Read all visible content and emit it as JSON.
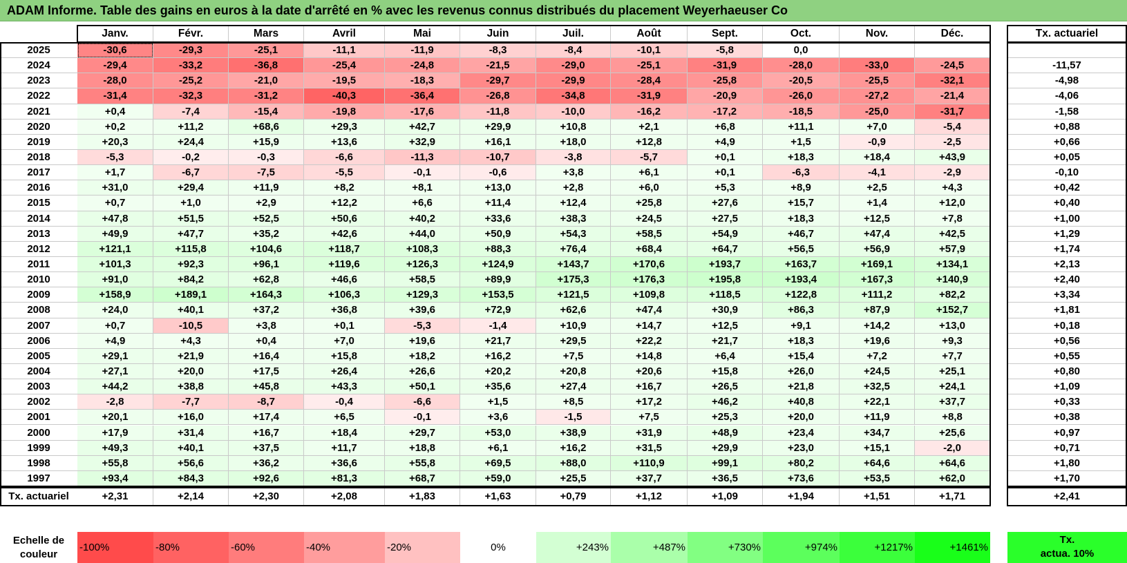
{
  "title": "ADAM Informe. Table des gains en euros à la date d'arrêté en % avec les revenus connus distribués du placement Weyerhaeuser Co",
  "months": [
    "Janv.",
    "Févr.",
    "Mars",
    "Avril",
    "Mai",
    "Juin",
    "Juil.",
    "Août",
    "Sept.",
    "Oct.",
    "Nov.",
    "Déc."
  ],
  "rate_header": "Tx. actuariel",
  "rows": [
    {
      "year": "2025",
      "values": [
        "-30,6",
        "-29,3",
        "-25,1",
        "-11,1",
        "-11,9",
        "-8,3",
        "-8,4",
        "-10,1",
        "-5,8",
        "0,0",
        "",
        ""
      ],
      "rate": ""
    },
    {
      "year": "2024",
      "values": [
        "-29,4",
        "-33,2",
        "-36,8",
        "-25,4",
        "-24,8",
        "-21,5",
        "-29,0",
        "-25,1",
        "-31,9",
        "-28,0",
        "-33,0",
        "-24,5"
      ],
      "rate": "-11,57"
    },
    {
      "year": "2023",
      "values": [
        "-28,0",
        "-25,2",
        "-21,0",
        "-19,5",
        "-18,3",
        "-29,7",
        "-29,9",
        "-28,4",
        "-25,8",
        "-20,5",
        "-25,5",
        "-32,1"
      ],
      "rate": "-4,98"
    },
    {
      "year": "2022",
      "values": [
        "-31,4",
        "-32,3",
        "-31,2",
        "-40,3",
        "-36,4",
        "-26,8",
        "-34,8",
        "-31,9",
        "-20,9",
        "-26,0",
        "-27,2",
        "-21,4"
      ],
      "rate": "-4,06"
    },
    {
      "year": "2021",
      "values": [
        "+0,4",
        "-7,4",
        "-15,4",
        "-19,8",
        "-17,6",
        "-11,8",
        "-10,0",
        "-16,2",
        "-17,2",
        "-18,5",
        "-25,0",
        "-31,7"
      ],
      "rate": "-1,58"
    },
    {
      "year": "2020",
      "values": [
        "+0,2",
        "+11,2",
        "+68,6",
        "+29,3",
        "+42,7",
        "+29,9",
        "+10,8",
        "+2,1",
        "+6,8",
        "+11,1",
        "+7,0",
        "-5,4"
      ],
      "rate": "+0,88"
    },
    {
      "year": "2019",
      "values": [
        "+20,3",
        "+24,4",
        "+15,9",
        "+13,6",
        "+32,9",
        "+16,1",
        "+18,0",
        "+12,8",
        "+4,9",
        "+1,5",
        "-0,9",
        "-2,5"
      ],
      "rate": "+0,66"
    },
    {
      "year": "2018",
      "values": [
        "-5,3",
        "-0,2",
        "-0,3",
        "-6,6",
        "-11,3",
        "-10,7",
        "-3,8",
        "-5,7",
        "+0,1",
        "+18,3",
        "+18,4",
        "+43,9"
      ],
      "rate": "+0,05"
    },
    {
      "year": "2017",
      "values": [
        "+1,7",
        "-6,7",
        "-7,5",
        "-5,5",
        "-0,1",
        "-0,6",
        "+3,8",
        "+6,1",
        "+0,1",
        "-6,3",
        "-4,1",
        "-2,9"
      ],
      "rate": "-0,10"
    },
    {
      "year": "2016",
      "values": [
        "+31,0",
        "+29,4",
        "+11,9",
        "+8,2",
        "+8,1",
        "+13,0",
        "+2,8",
        "+6,0",
        "+5,3",
        "+8,9",
        "+2,5",
        "+4,3"
      ],
      "rate": "+0,42"
    },
    {
      "year": "2015",
      "values": [
        "+0,7",
        "+1,0",
        "+2,9",
        "+12,2",
        "+6,6",
        "+11,4",
        "+12,4",
        "+25,8",
        "+27,6",
        "+15,7",
        "+1,4",
        "+12,0"
      ],
      "rate": "+0,40"
    },
    {
      "year": "2014",
      "values": [
        "+47,8",
        "+51,5",
        "+52,5",
        "+50,6",
        "+40,2",
        "+33,6",
        "+38,3",
        "+24,5",
        "+27,5",
        "+18,3",
        "+12,5",
        "+7,8"
      ],
      "rate": "+1,00"
    },
    {
      "year": "2013",
      "values": [
        "+49,9",
        "+47,7",
        "+35,2",
        "+42,6",
        "+44,0",
        "+50,9",
        "+54,3",
        "+58,5",
        "+54,9",
        "+46,7",
        "+47,4",
        "+42,5"
      ],
      "rate": "+1,29"
    },
    {
      "year": "2012",
      "values": [
        "+121,1",
        "+115,8",
        "+104,6",
        "+118,7",
        "+108,3",
        "+88,3",
        "+76,4",
        "+68,4",
        "+64,7",
        "+56,5",
        "+56,9",
        "+57,9"
      ],
      "rate": "+1,74"
    },
    {
      "year": "2011",
      "values": [
        "+101,3",
        "+92,3",
        "+96,1",
        "+119,6",
        "+126,3",
        "+124,9",
        "+143,7",
        "+170,6",
        "+193,7",
        "+163,7",
        "+169,1",
        "+134,1"
      ],
      "rate": "+2,13"
    },
    {
      "year": "2010",
      "values": [
        "+91,0",
        "+84,2",
        "+62,8",
        "+46,6",
        "+58,5",
        "+89,9",
        "+175,3",
        "+176,3",
        "+195,8",
        "+193,4",
        "+167,3",
        "+140,9"
      ],
      "rate": "+2,40"
    },
    {
      "year": "2009",
      "values": [
        "+158,9",
        "+189,1",
        "+164,3",
        "+106,3",
        "+129,3",
        "+153,5",
        "+121,5",
        "+109,8",
        "+118,5",
        "+122,8",
        "+111,2",
        "+82,2"
      ],
      "rate": "+3,34"
    },
    {
      "year": "2008",
      "values": [
        "+24,0",
        "+40,1",
        "+37,2",
        "+36,8",
        "+39,6",
        "+72,9",
        "+62,6",
        "+47,4",
        "+30,9",
        "+86,3",
        "+87,9",
        "+152,7"
      ],
      "rate": "+1,81"
    },
    {
      "year": "2007",
      "values": [
        "+0,7",
        "-10,5",
        "+3,8",
        "+0,1",
        "-5,3",
        "-1,4",
        "+10,9",
        "+14,7",
        "+12,5",
        "+9,1",
        "+14,2",
        "+13,0"
      ],
      "rate": "+0,18"
    },
    {
      "year": "2006",
      "values": [
        "+4,9",
        "+4,3",
        "+0,4",
        "+7,0",
        "+19,6",
        "+21,7",
        "+29,5",
        "+22,2",
        "+21,7",
        "+18,3",
        "+19,6",
        "+9,3"
      ],
      "rate": "+0,56"
    },
    {
      "year": "2005",
      "values": [
        "+29,1",
        "+21,9",
        "+16,4",
        "+15,8",
        "+18,2",
        "+16,2",
        "+7,5",
        "+14,8",
        "+6,4",
        "+15,4",
        "+7,2",
        "+7,7"
      ],
      "rate": "+0,55"
    },
    {
      "year": "2004",
      "values": [
        "+27,1",
        "+20,0",
        "+17,5",
        "+26,4",
        "+26,6",
        "+20,2",
        "+20,8",
        "+20,6",
        "+15,8",
        "+26,0",
        "+24,5",
        "+25,1"
      ],
      "rate": "+0,80"
    },
    {
      "year": "2003",
      "values": [
        "+44,2",
        "+38,8",
        "+45,8",
        "+43,3",
        "+50,1",
        "+35,6",
        "+27,4",
        "+16,7",
        "+26,5",
        "+21,8",
        "+32,5",
        "+24,1"
      ],
      "rate": "+1,09"
    },
    {
      "year": "2002",
      "values": [
        "-2,8",
        "-7,7",
        "-8,7",
        "-0,4",
        "-6,6",
        "+1,5",
        "+8,5",
        "+17,2",
        "+46,2",
        "+40,8",
        "+22,1",
        "+37,7"
      ],
      "rate": "+0,33"
    },
    {
      "year": "2001",
      "values": [
        "+20,1",
        "+16,0",
        "+17,4",
        "+6,5",
        "-0,1",
        "+3,6",
        "-1,5",
        "+7,5",
        "+25,3",
        "+20,0",
        "+11,9",
        "+8,8"
      ],
      "rate": "+0,38"
    },
    {
      "year": "2000",
      "values": [
        "+17,9",
        "+31,4",
        "+16,7",
        "+18,4",
        "+29,7",
        "+53,0",
        "+38,9",
        "+31,9",
        "+48,9",
        "+23,4",
        "+34,7",
        "+25,6"
      ],
      "rate": "+0,97"
    },
    {
      "year": "1999",
      "values": [
        "+49,3",
        "+40,1",
        "+37,5",
        "+11,7",
        "+18,8",
        "+6,1",
        "+16,2",
        "+31,5",
        "+29,9",
        "+23,0",
        "+15,1",
        "-2,0"
      ],
      "rate": "+0,71"
    },
    {
      "year": "1998",
      "values": [
        "+55,8",
        "+56,6",
        "+36,2",
        "+36,6",
        "+55,8",
        "+69,5",
        "+88,0",
        "+110,9",
        "+99,1",
        "+80,2",
        "+64,6",
        "+64,6"
      ],
      "rate": "+1,80"
    },
    {
      "year": "1997",
      "values": [
        "+93,4",
        "+84,3",
        "+92,6",
        "+81,3",
        "+68,7",
        "+59,0",
        "+25,5",
        "+37,7",
        "+36,5",
        "+73,6",
        "+53,5",
        "+62,0"
      ],
      "rate": "+1,70"
    }
  ],
  "summary": {
    "label": "Tx. actuariel",
    "values": [
      "+2,31",
      "+2,14",
      "+2,30",
      "+2,08",
      "+1,83",
      "+1,63",
      "+0,79",
      "+1,12",
      "+1,09",
      "+1,94",
      "+1,51",
      "+1,71"
    ],
    "rate": "+2,41"
  },
  "legend": {
    "label_line1": "Echelle de",
    "label_line2": "couleur",
    "items": [
      {
        "text": "-100%",
        "color": "#ff4b4b",
        "align": "left"
      },
      {
        "text": "-80%",
        "color": "#ff6262",
        "align": "left"
      },
      {
        "text": "-60%",
        "color": "#ff7c7c",
        "align": "left"
      },
      {
        "text": "-40%",
        "color": "#ff9d9d",
        "align": "left"
      },
      {
        "text": "-20%",
        "color": "#ffc1c1",
        "align": "left"
      },
      {
        "text": "0%",
        "color": "#ffffff",
        "align": "center"
      },
      {
        "text": "+243%",
        "color": "#d3ffd3",
        "align": "right"
      },
      {
        "text": "+487%",
        "color": "#aaffaa",
        "align": "right"
      },
      {
        "text": "+730%",
        "color": "#82ff82",
        "align": "right"
      },
      {
        "text": "+974%",
        "color": "#5cff5c",
        "align": "right"
      },
      {
        "text": "+1217%",
        "color": "#3bff3b",
        "align": "right"
      },
      {
        "text": "+1461%",
        "color": "#19ff19",
        "align": "right"
      }
    ],
    "rate_line1": "Tx.",
    "rate_line2": "actua. 10%",
    "rate_color": "#2aff2a"
  },
  "colors": {
    "title_bg": "#8fd181",
    "negative_base": "#ff5050",
    "positive_base": "#3cff3c"
  }
}
